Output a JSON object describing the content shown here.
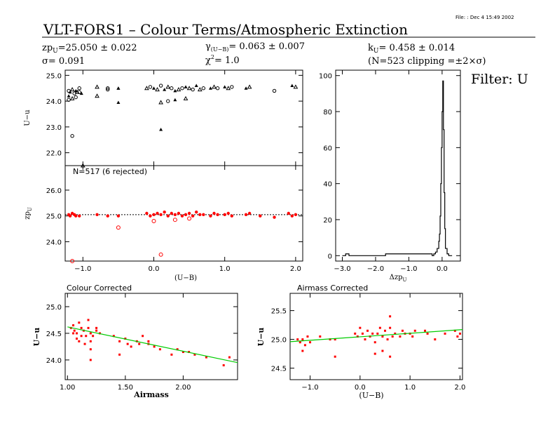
{
  "header": {
    "file_note": "File:   : Dec  4 15:49 2002",
    "title": "VLT-FORS1  –  Colour Terms/Atmospheric Extinction",
    "zp_label": "zp",
    "zp_sub": "U",
    "zp_value": "=25.050 ± 0.022",
    "sigma": "σ= 0.091",
    "gamma_label": "γ",
    "gamma_sub": "(U−B)",
    "gamma_value": "= 0.063 ± 0.007",
    "chi_label": "χ",
    "chi_sup": "2",
    "chi_value": "=   1.0",
    "k_label": "k",
    "k_sub": "U",
    "k_value": "= 0.458 ± 0.014",
    "clip": "(N=523 clipping =±2×σ)",
    "filter": "Filter: U"
  },
  "panels": {
    "top": {
      "ylabel": "U−u",
      "yticks": [
        "22.0",
        "23.0",
        "24.0",
        "25.0"
      ],
      "ylim": [
        21.5,
        25.2
      ],
      "xlim": [
        -1.25,
        2.1
      ]
    },
    "mid": {
      "ylabel": "zp",
      "ylabel_sub": "U",
      "annotation": "N=517 (6 rejected)",
      "yticks": [
        "24.0",
        "25.0",
        "26.0"
      ],
      "xticks": [
        "−1.0",
        "0.0",
        "1.0",
        "2.0"
      ],
      "xlabel": "(U−B)",
      "ylim": [
        23.25,
        26.95
      ],
      "xlim": [
        -1.25,
        2.1
      ],
      "zero_line": 25.05
    },
    "hist": {
      "xlabel": "Δzp",
      "xlabel_sub": "U",
      "yticks": [
        "0",
        "20",
        "40",
        "60",
        "80",
        "100"
      ],
      "xticks": [
        "−3.0",
        "−2.0",
        "−1.0",
        "0.0"
      ],
      "xlim": [
        -3.2,
        0.55
      ],
      "ylim": [
        -3,
        103
      ]
    },
    "colour": {
      "title": "Colour Corrected",
      "ylabel": "U−u",
      "xlabel": "Airmass",
      "yticks": [
        "24.0",
        "24.5",
        "25.0"
      ],
      "xticks": [
        "1.00",
        "1.50",
        "2.00"
      ],
      "xlim": [
        0.98,
        2.47
      ],
      "ylim": [
        23.63,
        25.25
      ]
    },
    "airmass": {
      "title": "Airmass Corrected",
      "ylabel": "U−u",
      "xlabel": "(U−B)",
      "yticks": [
        "24.5",
        "25.0",
        "25.5"
      ],
      "xticks": [
        "−1.0",
        "0.0",
        "1.0",
        "2.0"
      ],
      "xlim": [
        -1.4,
        2.05
      ],
      "ylim": [
        24.3,
        25.8
      ]
    }
  },
  "colors": {
    "points": "#ff0000",
    "fit": "#00cc00",
    "axes": "#000000"
  },
  "chart_data": [
    {
      "type": "scatter",
      "id": "top",
      "ylabel": "U−u",
      "x": [
        -1.2,
        -1.18,
        -1.15,
        -1.12,
        -1.1,
        -1.08,
        -1.05,
        -1.2,
        -1.15,
        -1.1,
        -1.02,
        -0.8,
        -0.65,
        -0.5,
        -0.8,
        -0.65,
        -0.5,
        -0.1,
        -0.05,
        0.0,
        0.05,
        0.1,
        0.15,
        0.2,
        0.25,
        0.3,
        0.35,
        0.4,
        0.45,
        0.5,
        0.55,
        0.6,
        0.65,
        0.7,
        0.8,
        0.85,
        0.9,
        1.0,
        1.05,
        1.1,
        1.3,
        1.35,
        1.7,
        1.95,
        2.0,
        -1.2,
        -0.5,
        0.1,
        0.2,
        0.3,
        0.45,
        -1.15,
        0.1,
        -1.0,
        -1.05
      ],
      "values": [
        24.4,
        24.35,
        24.45,
        24.3,
        24.4,
        24.35,
        24.5,
        24.2,
        24.1,
        24.15,
        24.3,
        24.55,
        24.5,
        24.5,
        24.2,
        24.45,
        24.5,
        24.5,
        24.55,
        24.5,
        24.45,
        24.6,
        24.45,
        24.55,
        24.5,
        24.4,
        24.45,
        24.5,
        24.55,
        24.5,
        24.45,
        24.6,
        24.45,
        24.5,
        24.5,
        24.55,
        24.5,
        24.55,
        24.5,
        24.55,
        24.5,
        24.55,
        24.4,
        24.6,
        24.55,
        24.05,
        23.95,
        23.95,
        24.0,
        24.05,
        24.1,
        22.65,
        22.9,
        21.5,
        24.35
      ]
    },
    {
      "type": "scatter",
      "id": "mid",
      "ylabel": "zp_U",
      "x": [
        -1.2,
        -1.18,
        -1.15,
        -1.12,
        -1.1,
        -1.05,
        -0.8,
        -0.65,
        -0.5,
        -0.1,
        -0.05,
        0.0,
        0.05,
        0.1,
        0.15,
        0.2,
        0.25,
        0.3,
        0.35,
        0.4,
        0.45,
        0.5,
        0.55,
        0.6,
        0.65,
        0.7,
        0.8,
        0.85,
        0.9,
        1.0,
        1.05,
        1.1,
        1.3,
        1.35,
        1.5,
        1.7,
        1.9,
        1.95,
        2.0,
        -0.5,
        0.0,
        0.3,
        0.5,
        -1.15,
        0.1
      ],
      "values": [
        25.05,
        25.0,
        25.1,
        25.05,
        25.0,
        25.0,
        25.05,
        25.0,
        25.0,
        25.1,
        25.0,
        25.05,
        25.1,
        25.05,
        25.15,
        25.0,
        25.1,
        25.05,
        25.1,
        25.0,
        25.05,
        25.1,
        25.0,
        25.15,
        25.05,
        25.05,
        25.0,
        25.1,
        25.05,
        25.05,
        25.1,
        25.0,
        25.05,
        25.1,
        25.0,
        24.95,
        25.1,
        25.0,
        25.05,
        24.55,
        24.8,
        24.85,
        24.9,
        23.25,
        23.5
      ]
    },
    {
      "type": "line",
      "id": "hist",
      "xlabel": "Δzp_U",
      "x": [
        -3.0,
        -2.9,
        -2.8,
        -1.7,
        -1.5,
        -0.3,
        -0.25,
        -0.2,
        -0.15,
        -0.1,
        -0.08,
        -0.06,
        -0.04,
        -0.02,
        0.0,
        0.02,
        0.04,
        0.06,
        0.08,
        0.1,
        0.15,
        0.2,
        0.3
      ],
      "values": [
        0,
        1,
        0,
        1,
        1,
        0,
        1,
        2,
        4,
        8,
        12,
        22,
        40,
        60,
        80,
        97,
        70,
        35,
        15,
        4,
        1,
        0,
        0
      ]
    },
    {
      "type": "scatter",
      "id": "colour",
      "xlabel": "Airmass",
      "ylabel": "U−u",
      "x": [
        1.03,
        1.05,
        1.06,
        1.08,
        1.1,
        1.12,
        1.14,
        1.16,
        1.18,
        1.2,
        1.22,
        1.25,
        1.28,
        1.1,
        1.15,
        1.2,
        1.12,
        1.08,
        1.05,
        1.18,
        1.2,
        1.25,
        1.4,
        1.45,
        1.5,
        1.52,
        1.55,
        1.6,
        1.62,
        1.65,
        1.7,
        1.75,
        1.8,
        1.9,
        1.95,
        2.0,
        2.05,
        2.1,
        2.2,
        2.35,
        2.4,
        1.45,
        1.7,
        1.2
      ],
      "values": [
        24.6,
        24.65,
        24.55,
        24.5,
        24.7,
        24.6,
        24.55,
        24.45,
        24.75,
        24.5,
        24.45,
        24.6,
        24.5,
        24.35,
        24.3,
        24.2,
        24.45,
        24.4,
        24.5,
        24.6,
        24.35,
        24.55,
        24.45,
        24.35,
        24.4,
        24.3,
        24.25,
        24.35,
        24.3,
        24.45,
        24.3,
        24.25,
        24.2,
        24.1,
        24.2,
        24.15,
        24.15,
        24.1,
        24.05,
        23.9,
        24.05,
        24.1,
        24.35,
        24.0
      ]
    },
    {
      "type": "scatter",
      "id": "airmass",
      "xlabel": "(U−B)",
      "ylabel": "U−u",
      "x": [
        -1.25,
        -1.2,
        -1.15,
        -1.1,
        -1.05,
        -1.0,
        -0.8,
        -0.6,
        -0.5,
        -0.1,
        -0.05,
        0.0,
        0.05,
        0.1,
        0.15,
        0.2,
        0.25,
        0.3,
        0.35,
        0.4,
        0.45,
        0.5,
        0.55,
        0.6,
        0.65,
        0.7,
        0.8,
        0.85,
        0.9,
        1.0,
        1.05,
        1.1,
        1.3,
        1.35,
        1.5,
        1.7,
        1.9,
        1.95,
        2.0,
        -0.5,
        0.3,
        0.45,
        0.6,
        -1.15,
        0.6
      ],
      "values": [
        25.0,
        24.95,
        25.0,
        24.9,
        25.05,
        24.95,
        25.05,
        25.0,
        25.0,
        25.1,
        25.05,
        25.2,
        25.1,
        25.0,
        25.15,
        25.05,
        25.1,
        24.95,
        25.1,
        25.2,
        25.05,
        25.15,
        25.0,
        25.2,
        25.05,
        25.1,
        25.05,
        25.15,
        25.1,
        25.1,
        25.05,
        25.15,
        25.15,
        25.1,
        25.0,
        25.1,
        25.15,
        25.05,
        25.1,
        24.7,
        24.75,
        24.8,
        25.4,
        24.8,
        24.7
      ]
    }
  ]
}
